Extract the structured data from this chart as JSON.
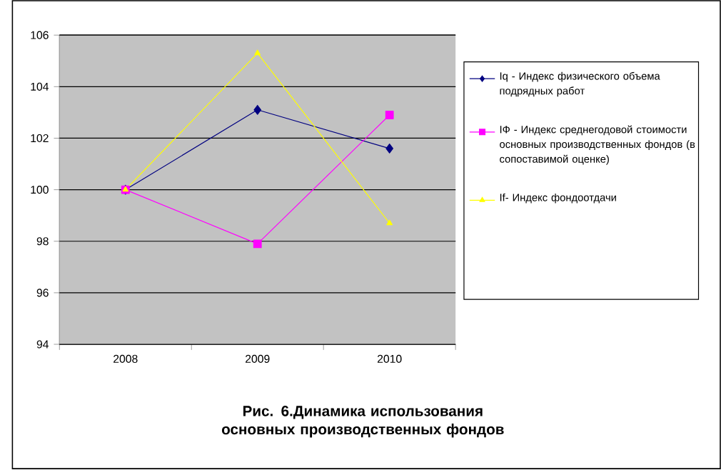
{
  "chart_data": {
    "type": "line",
    "title": "Рис. 6.Динамика использования основных производственных фондов",
    "categories": [
      "2008",
      "2009",
      "2010"
    ],
    "series": [
      {
        "name": "Iq - Индекс физического объема подрядных работ",
        "color": "#000080",
        "marker": "diamond",
        "values": [
          100,
          103.1,
          101.6
        ]
      },
      {
        "name": "IФ - Индекс среднегодовой стоимости основных производственных фондов (в сопоставимой оценке)",
        "color": "#ff00ff",
        "marker": "square",
        "values": [
          100,
          97.9,
          102.9
        ]
      },
      {
        "name": "If- Индекс фондоотдачи",
        "color": "#ffff00",
        "marker": "triangle",
        "values": [
          100,
          105.3,
          98.7
        ]
      }
    ],
    "ylim": [
      94,
      106
    ],
    "yticks": [
      94,
      96,
      98,
      100,
      102,
      104,
      106
    ],
    "grid": "y",
    "legend": "right",
    "line_style": "solid"
  }
}
